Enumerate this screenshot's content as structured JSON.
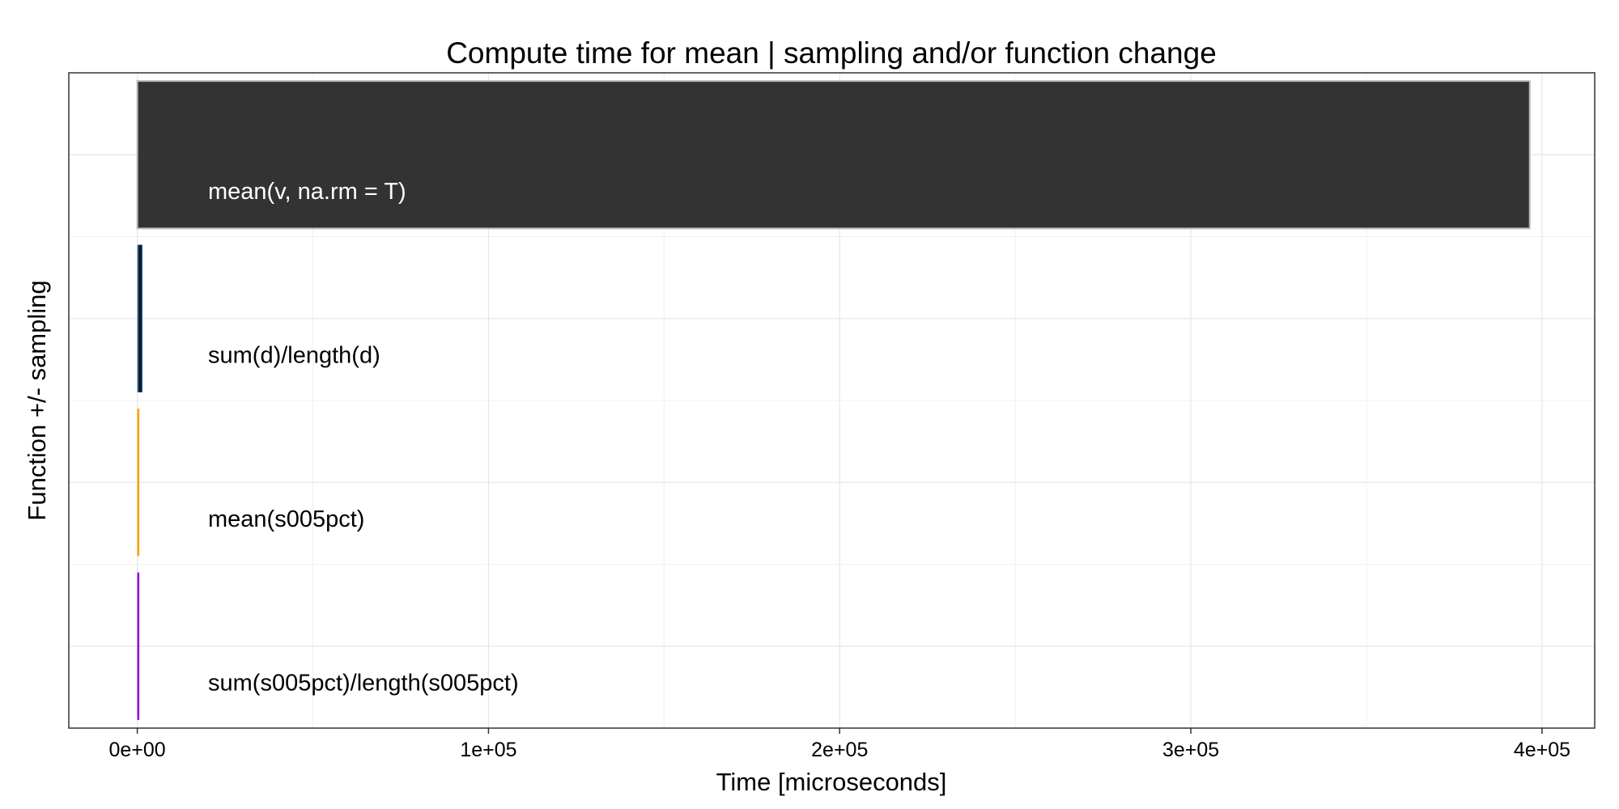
{
  "chart_data": {
    "type": "bar",
    "orientation": "horizontal",
    "title": "Compute time for mean | sampling and/or function change",
    "xlabel": "Time [microseconds]",
    "ylabel": "Function +/- sampling",
    "xlim": [
      -19500,
      415000
    ],
    "x_ticks": [
      0,
      100000,
      200000,
      300000,
      400000
    ],
    "x_tick_labels": [
      "0e+00",
      "1e+05",
      "2e+05",
      "3e+05",
      "4e+05"
    ],
    "categories": [
      "mean(v, na.rm = T)",
      "sum(d)/length(d)",
      "mean(s005pct)",
      "sum(s005pct)/length(s005pct)"
    ],
    "values": [
      396500,
      1500,
      200,
      100
    ],
    "colors": [
      "#333333",
      "#1f78c8",
      "#f5a300",
      "#9400d3"
    ],
    "label_colors": [
      "#ffffff",
      "#000000",
      "#000000",
      "#000000"
    ],
    "grid": true,
    "legend": "none"
  }
}
